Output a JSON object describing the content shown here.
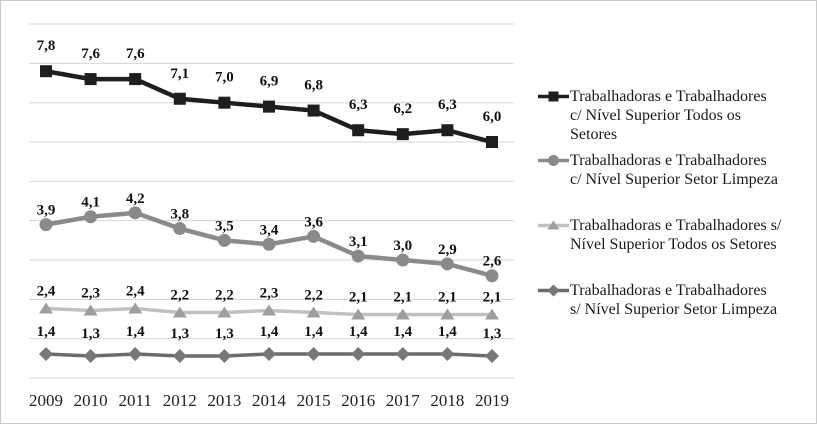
{
  "figure": {
    "background": "#ffffff",
    "border_color": "#c9c9c9",
    "gridline_color": "#d6d6d6",
    "label_color": "#111111",
    "axis_label_color": "#222222"
  },
  "chart_data": {
    "type": "line",
    "title": "",
    "xlabel": "",
    "ylabel": "",
    "x_labels": [
      "2009",
      "2010",
      "2011",
      "2012",
      "2013",
      "2014",
      "2015",
      "2016",
      "2017",
      "2018",
      "2019"
    ],
    "ylim": [
      0,
      9
    ],
    "grid": "horizontal",
    "gridline_values": [
      0,
      1,
      2,
      3,
      4,
      5,
      6,
      7,
      8,
      9
    ],
    "legend_position": "right",
    "decimal_separator": ",",
    "data_labels_shown": true,
    "series": [
      {
        "name": "Trabalhadoras e Trabalhadores c/ Nível Superior Todos os Setores",
        "name_lines": [
          "Trabalhadoras e Trabalhadores",
          "c/ Nível Superior Todos os",
          "Setores"
        ],
        "marker": "square",
        "color": "#1e1e1e",
        "marker_color": "#1e1e1e",
        "values": [
          7.8,
          7.6,
          7.6,
          7.1,
          7.0,
          6.9,
          6.8,
          6.3,
          6.2,
          6.3,
          6.0
        ]
      },
      {
        "name": "Trabalhadoras e Trabalhadores c/ Nível Superior Setor Limpeza",
        "name_lines": [
          "Trabalhadoras e Trabalhadores",
          "c/ Nível Superior Setor Limpeza"
        ],
        "marker": "circle",
        "color": "#8a8a8a",
        "marker_color": "#8a8a8a",
        "values": [
          3.9,
          4.1,
          4.2,
          3.8,
          3.5,
          3.4,
          3.6,
          3.1,
          3.0,
          2.9,
          2.6
        ]
      },
      {
        "name": "Trabalhadoras e Trabalhadores s/ Nível Superior Todos os Setores",
        "name_lines": [
          "Trabalhadoras e Trabalhadores s/",
          "Nível Superior Todos os Setores"
        ],
        "marker": "triangle",
        "color": "#c1c1c1",
        "marker_color": "#9e9e9e",
        "values": [
          2.4,
          2.3,
          2.4,
          2.2,
          2.2,
          2.3,
          2.2,
          2.1,
          2.1,
          2.1,
          2.1
        ]
      },
      {
        "name": "Trabalhadoras e Trabalhadores s/ Nível Superior Setor Limpeza",
        "name_lines": [
          "Trabalhadoras e Trabalhadores",
          "s/ Nível Superior Setor Limpeza"
        ],
        "marker": "diamond",
        "color": "#6b6b6b",
        "marker_color": "#787878",
        "values": [
          1.4,
          1.3,
          1.4,
          1.3,
          1.3,
          1.4,
          1.4,
          1.4,
          1.4,
          1.4,
          1.3
        ]
      }
    ]
  }
}
